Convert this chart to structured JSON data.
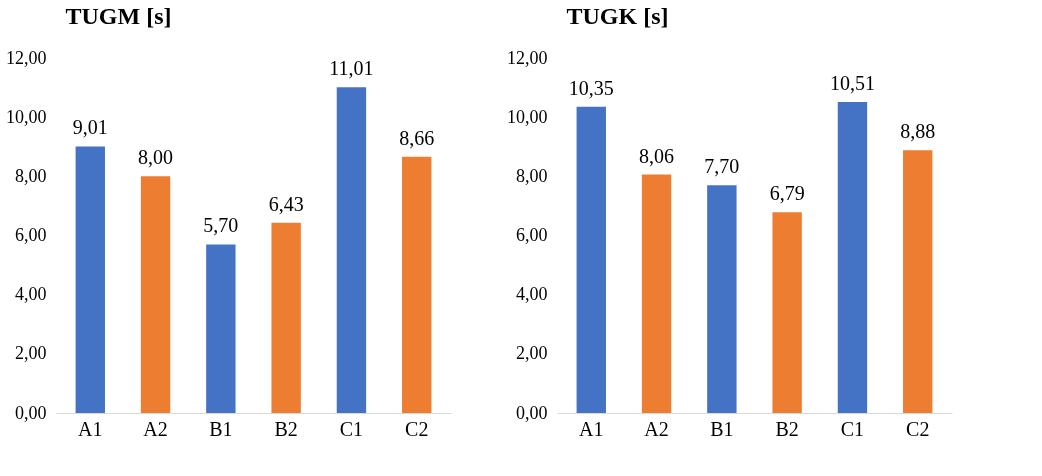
{
  "chart_data": [
    {
      "type": "bar",
      "title": "TUGM [s]",
      "categories": [
        "A1",
        "A2",
        "B1",
        "B2",
        "C1",
        "C2"
      ],
      "values": [
        9.01,
        8.0,
        5.7,
        6.43,
        11.01,
        8.66
      ],
      "colors": [
        "#4472c4",
        "#ed7d31",
        "#4472c4",
        "#ed7d31",
        "#4472c4",
        "#ed7d31"
      ],
      "value_labels": [
        "9,01",
        "8,00",
        "5,70",
        "6,43",
        "11,01",
        "8,66"
      ],
      "ylim": [
        0,
        12
      ],
      "yticks": [
        {
          "value": 0,
          "label": "0,00"
        },
        {
          "value": 2,
          "label": "2,00"
        },
        {
          "value": 4,
          "label": "4,00"
        },
        {
          "value": 6,
          "label": "6,00"
        },
        {
          "value": 8,
          "label": "8,00"
        },
        {
          "value": 10,
          "label": "10,00"
        },
        {
          "value": 12,
          "label": "12,00"
        }
      ],
      "grid": false
    },
    {
      "type": "bar",
      "title": "TUGK [s]",
      "categories": [
        "A1",
        "A2",
        "B1",
        "B2",
        "C1",
        "C2"
      ],
      "values": [
        10.35,
        8.06,
        7.7,
        6.79,
        10.51,
        8.88
      ],
      "colors": [
        "#4472c4",
        "#ed7d31",
        "#4472c4",
        "#ed7d31",
        "#4472c4",
        "#ed7d31"
      ],
      "value_labels": [
        "10,35",
        "8,06",
        "7,70",
        "6,79",
        "10,51",
        "8,88"
      ],
      "ylim": [
        0,
        12
      ],
      "yticks": [
        {
          "value": 0,
          "label": "0,00"
        },
        {
          "value": 2,
          "label": "2,00"
        },
        {
          "value": 4,
          "label": "4,00"
        },
        {
          "value": 6,
          "label": "6,00"
        },
        {
          "value": 8,
          "label": "8,00"
        },
        {
          "value": 10,
          "label": "10,00"
        },
        {
          "value": 12,
          "label": "12,00"
        }
      ],
      "grid": false
    }
  ]
}
